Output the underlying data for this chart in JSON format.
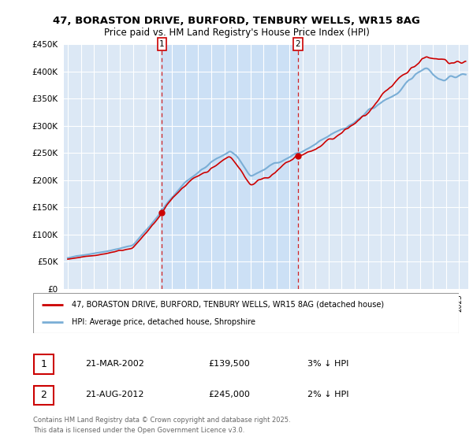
{
  "title": "47, BORASTON DRIVE, BURFORD, TENBURY WELLS, WR15 8AG",
  "subtitle": "Price paid vs. HM Land Registry's House Price Index (HPI)",
  "ylim": [
    0,
    450000
  ],
  "xlim_start": 1994.7,
  "xlim_end": 2025.7,
  "legend_line1": "47, BORASTON DRIVE, BURFORD, TENBURY WELLS, WR15 8AG (detached house)",
  "legend_line2": "HPI: Average price, detached house, Shropshire",
  "transaction1_date": "21-MAR-2002",
  "transaction1_price": "£139,500",
  "transaction1_hpi": "3% ↓ HPI",
  "transaction2_date": "21-AUG-2012",
  "transaction2_price": "£245,000",
  "transaction2_hpi": "2% ↓ HPI",
  "footer": "Contains HM Land Registry data © Crown copyright and database right 2025.\nThis data is licensed under the Open Government Licence v3.0.",
  "line_color_red": "#cc0000",
  "line_color_blue": "#7aaed6",
  "background_color": "#ffffff",
  "plot_bg_color": "#dce8f5",
  "plot_bg_outside": "#e8e8e8",
  "grid_color": "#ffffff",
  "highlight_color": "#cce0f5",
  "marker1_x": 2002.22,
  "marker1_y": 139500,
  "marker2_x": 2012.64,
  "marker2_y": 245000,
  "seed": 42
}
